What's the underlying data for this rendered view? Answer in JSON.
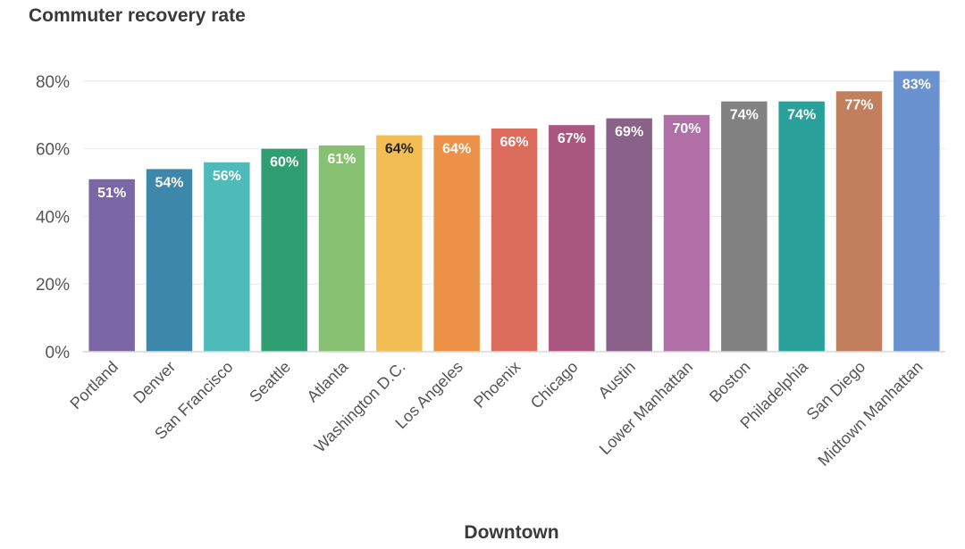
{
  "chart_data": {
    "type": "bar",
    "title": "Commuter recovery rate",
    "xlabel": "Downtown",
    "ylabel": "",
    "ylim": [
      0,
      0.9
    ],
    "yticks": [
      0,
      0.2,
      0.4,
      0.6,
      0.8
    ],
    "ytick_labels": [
      "0%",
      "20%",
      "40%",
      "60%",
      "80%"
    ],
    "grid": true,
    "categories": [
      "Portland",
      "Denver",
      "San Francisco",
      "Seattle",
      "Atlanta",
      "Washington D.C.",
      "Los Angeles",
      "Phoenix",
      "Chicago",
      "Austin",
      "Lower Manhattan",
      "Boston",
      "Philadelphia",
      "San Diego",
      "Midtown Manhattan"
    ],
    "values": [
      0.51,
      0.54,
      0.56,
      0.6,
      0.61,
      0.64,
      0.64,
      0.66,
      0.67,
      0.69,
      0.7,
      0.74,
      0.74,
      0.77,
      0.83
    ],
    "value_labels": [
      "51%",
      "54%",
      "56%",
      "60%",
      "61%",
      "64%",
      "64%",
      "66%",
      "67%",
      "69%",
      "70%",
      "74%",
      "74%",
      "77%",
      "83%"
    ],
    "colors": [
      "#7b66a6",
      "#3d88aa",
      "#4fbaba",
      "#2f9e72",
      "#86c070",
      "#f2bd52",
      "#ee9148",
      "#dc6c5c",
      "#a9577f",
      "#8a6188",
      "#b06fa7",
      "#828282",
      "#2aa09a",
      "#c27f5e",
      "#6a92d0"
    ],
    "label_colors": [
      "#ffffff",
      "#ffffff",
      "#ffffff",
      "#ffffff",
      "#ffffff",
      "#222222",
      "#ffffff",
      "#ffffff",
      "#ffffff",
      "#ffffff",
      "#ffffff",
      "#ffffff",
      "#ffffff",
      "#ffffff",
      "#ffffff"
    ]
  }
}
